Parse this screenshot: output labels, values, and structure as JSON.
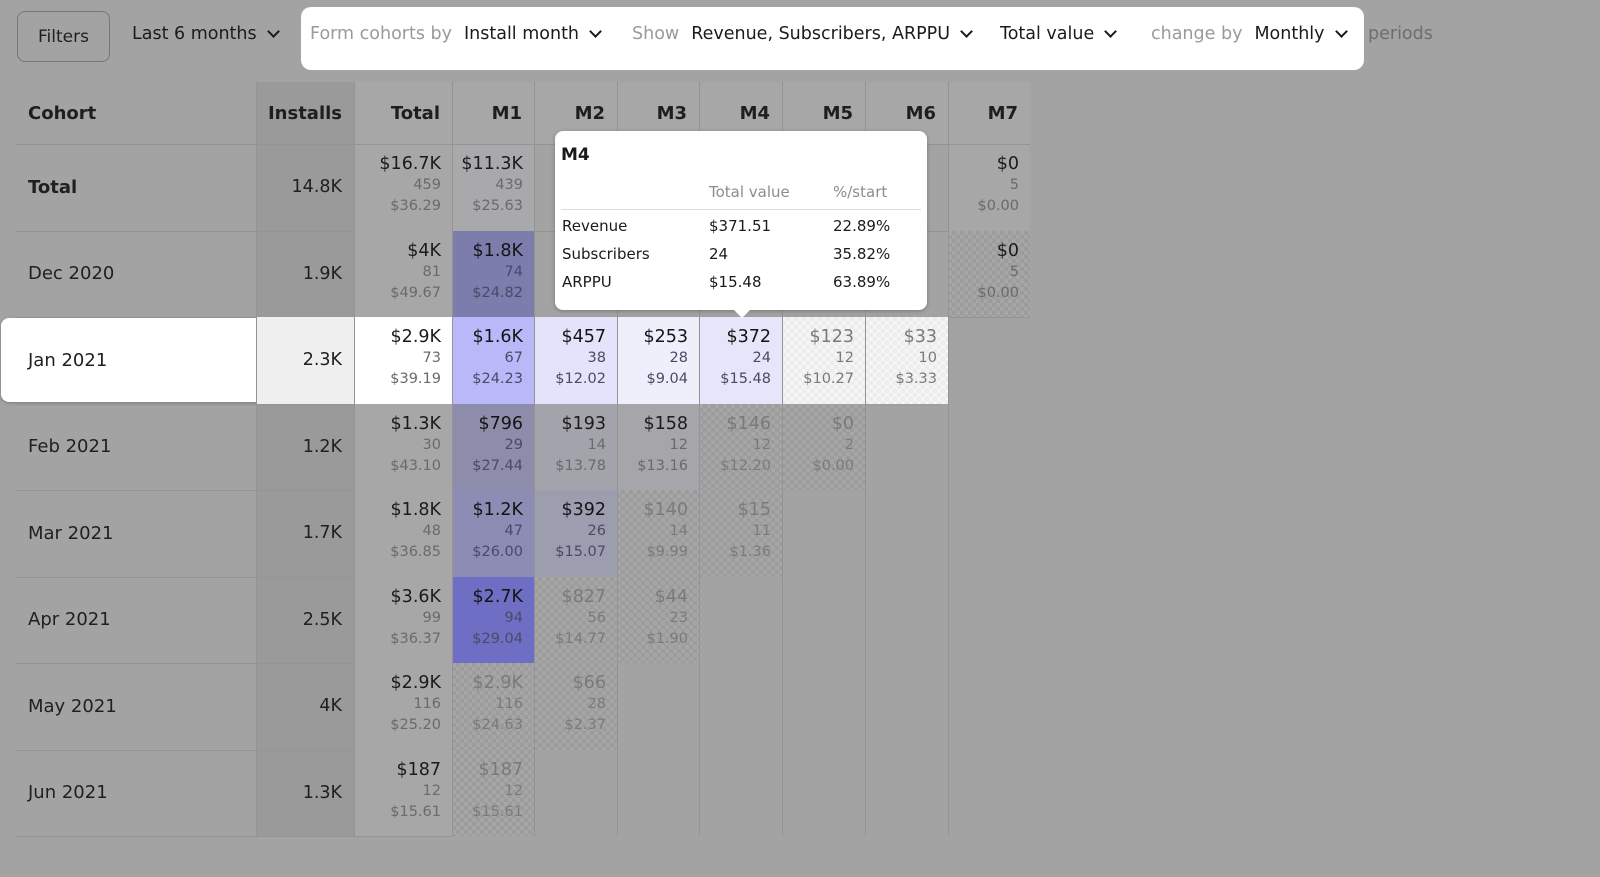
{
  "toolbar": {
    "filters_label": "Filters",
    "date_range": "Last 6 months",
    "cohort_prefix": "Form cohorts by",
    "cohort_value": "Install month",
    "show_prefix": "Show",
    "show_value": "Revenue, Subscribers, ARPPU",
    "value_mode": "Total value",
    "change_prefix": "change by",
    "change_value": "Monthly",
    "periods_label": "periods"
  },
  "table": {
    "headers": [
      "Cohort",
      "Installs",
      "Total",
      "M1",
      "M2",
      "M3",
      "M4",
      "M5",
      "M6",
      "M7"
    ],
    "rows": [
      {
        "label": "Total",
        "installs": "14.8K",
        "cells": [
          {
            "v": [
              "$16.7K",
              "459",
              "$36.29"
            ]
          },
          {
            "v": [
              "$11.3K",
              "439",
              "$25.63"
            ]
          },
          {
            "v": [
              "",
              "",
              ""
            ]
          },
          {
            "v": [
              "",
              "",
              ""
            ]
          },
          {
            "v": [
              "",
              "",
              ""
            ]
          },
          {
            "v": [
              "",
              "",
              ""
            ]
          },
          {
            "v": [
              "",
              "",
              ""
            ]
          },
          {
            "v": [
              "$0",
              "5",
              "$0.00"
            ]
          }
        ]
      },
      {
        "label": "Dec 2020",
        "installs": "1.9K",
        "cells": [
          {
            "v": [
              "$4K",
              "81",
              "$49.67"
            ]
          },
          {
            "v": [
              "$1.8K",
              "74",
              "$24.82"
            ]
          },
          {
            "v": [
              "",
              "",
              ""
            ]
          },
          {
            "v": [
              "",
              "",
              ""
            ]
          },
          {
            "v": [
              "",
              "",
              ""
            ]
          },
          {
            "v": [
              "",
              "",
              ""
            ]
          },
          {
            "v": [
              "",
              "",
              ""
            ]
          },
          {
            "v": [
              "$0",
              "5",
              "$0.00"
            ]
          }
        ]
      },
      {
        "label": "Jan 2021",
        "installs": "2.3K",
        "cells": [
          {
            "v": [
              "$2.9K",
              "73",
              "$39.19"
            ]
          },
          {
            "v": [
              "$1.6K",
              "67",
              "$24.23"
            ]
          },
          {
            "v": [
              "$457",
              "38",
              "$12.02"
            ]
          },
          {
            "v": [
              "$253",
              "28",
              "$9.04"
            ]
          },
          {
            "v": [
              "$372",
              "24",
              "$15.48"
            ]
          },
          {
            "v": [
              "$123",
              "12",
              "$10.27"
            ]
          },
          {
            "v": [
              "$33",
              "10",
              "$3.33"
            ]
          },
          {
            "v": [
              "",
              "",
              ""
            ]
          }
        ]
      },
      {
        "label": "Feb 2021",
        "installs": "1.2K",
        "cells": [
          {
            "v": [
              "$1.3K",
              "30",
              "$43.10"
            ]
          },
          {
            "v": [
              "$796",
              "29",
              "$27.44"
            ]
          },
          {
            "v": [
              "$193",
              "14",
              "$13.78"
            ]
          },
          {
            "v": [
              "$158",
              "12",
              "$13.16"
            ]
          },
          {
            "v": [
              "$146",
              "12",
              "$12.20"
            ]
          },
          {
            "v": [
              "$0",
              "2",
              "$0.00"
            ]
          },
          {
            "v": [
              "",
              "",
              ""
            ]
          },
          {
            "v": [
              "",
              "",
              ""
            ]
          }
        ]
      },
      {
        "label": "Mar 2021",
        "installs": "1.7K",
        "cells": [
          {
            "v": [
              "$1.8K",
              "48",
              "$36.85"
            ]
          },
          {
            "v": [
              "$1.2K",
              "47",
              "$26.00"
            ]
          },
          {
            "v": [
              "$392",
              "26",
              "$15.07"
            ]
          },
          {
            "v": [
              "$140",
              "14",
              "$9.99"
            ]
          },
          {
            "v": [
              "$15",
              "11",
              "$1.36"
            ]
          },
          {
            "v": [
              "",
              "",
              ""
            ]
          },
          {
            "v": [
              "",
              "",
              ""
            ]
          },
          {
            "v": [
              "",
              "",
              ""
            ]
          }
        ]
      },
      {
        "label": "Apr 2021",
        "installs": "2.5K",
        "cells": [
          {
            "v": [
              "$3.6K",
              "99",
              "$36.37"
            ]
          },
          {
            "v": [
              "$2.7K",
              "94",
              "$29.04"
            ]
          },
          {
            "v": [
              "$827",
              "56",
              "$14.77"
            ]
          },
          {
            "v": [
              "$44",
              "23",
              "$1.90"
            ]
          },
          {
            "v": [
              "",
              "",
              ""
            ]
          },
          {
            "v": [
              "",
              "",
              ""
            ]
          },
          {
            "v": [
              "",
              "",
              ""
            ]
          },
          {
            "v": [
              "",
              "",
              ""
            ]
          }
        ]
      },
      {
        "label": "May 2021",
        "installs": "4K",
        "cells": [
          {
            "v": [
              "$2.9K",
              "116",
              "$25.20"
            ]
          },
          {
            "v": [
              "$2.9K",
              "116",
              "$24.63"
            ]
          },
          {
            "v": [
              "$66",
              "28",
              "$2.37"
            ]
          },
          {
            "v": [
              "",
              "",
              ""
            ]
          },
          {
            "v": [
              "",
              "",
              ""
            ]
          },
          {
            "v": [
              "",
              "",
              ""
            ]
          },
          {
            "v": [
              "",
              "",
              ""
            ]
          },
          {
            "v": [
              "",
              "",
              ""
            ]
          }
        ]
      },
      {
        "label": "Jun 2021",
        "installs": "1.3K",
        "cells": [
          {
            "v": [
              "$187",
              "12",
              "$15.61"
            ]
          },
          {
            "v": [
              "$187",
              "12",
              "$15.61"
            ]
          },
          {
            "v": [
              "",
              "",
              ""
            ]
          },
          {
            "v": [
              "",
              "",
              ""
            ]
          },
          {
            "v": [
              "",
              "",
              ""
            ]
          },
          {
            "v": [
              "",
              "",
              ""
            ]
          },
          {
            "v": [
              "",
              "",
              ""
            ]
          },
          {
            "v": [
              "",
              "",
              ""
            ]
          }
        ]
      }
    ]
  },
  "tooltip": {
    "title": "M4",
    "col_value": "Total value",
    "col_pct": "%/start",
    "rows": [
      {
        "metric": "Revenue",
        "value": "$371.51",
        "pct": "22.89%"
      },
      {
        "metric": "Subscribers",
        "value": "24",
        "pct": "35.82%"
      },
      {
        "metric": "ARPPU",
        "value": "$15.48",
        "pct": "63.89%"
      }
    ]
  },
  "colors": {
    "background": "#a3a3a3",
    "accent_purple": "#5b5bd6"
  }
}
